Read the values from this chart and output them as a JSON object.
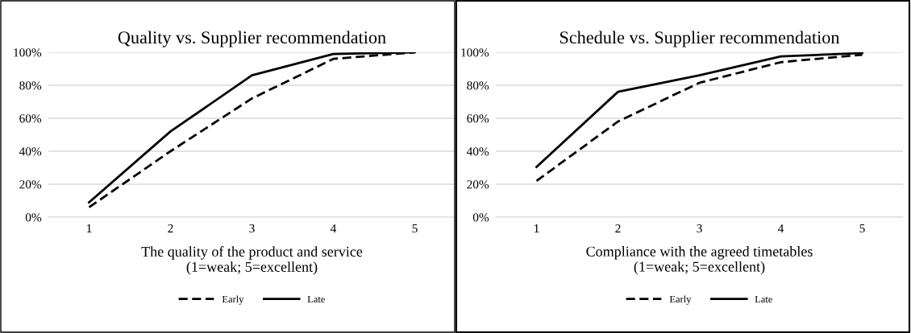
{
  "chart_data": [
    {
      "type": "line",
      "title": "Quality vs. Supplier recommendation",
      "xlabel": "The quality of the product and service\n(1=weak; 5=excellent)",
      "categories": [
        "1",
        "2",
        "3",
        "4",
        "5"
      ],
      "series": [
        {
          "name": "Early",
          "color": "#000000",
          "line_style": "dashed",
          "values": [
            6,
            40,
            72,
            96,
            100
          ]
        },
        {
          "name": "Late",
          "color": "#000000",
          "line_style": "solid",
          "values": [
            9,
            52,
            86,
            99,
            100
          ]
        }
      ],
      "ylim": [
        0,
        100
      ],
      "yticks": [
        {
          "value": 0,
          "label": "0%"
        },
        {
          "value": 20,
          "label": "20%"
        },
        {
          "value": 40,
          "label": "40%"
        },
        {
          "value": 60,
          "label": "60%"
        },
        {
          "value": 80,
          "label": "80%"
        },
        {
          "value": 100,
          "label": "100%"
        }
      ],
      "grid": "y",
      "legend": "bottom"
    },
    {
      "type": "line",
      "title": "Schedule vs. Supplier recommendation",
      "xlabel": "Compliance with the agreed timetables\n(1=weak; 5=excellent)",
      "categories": [
        "1",
        "2",
        "3",
        "4",
        "5"
      ],
      "series": [
        {
          "name": "Early",
          "color": "#000000",
          "line_style": "dashed",
          "values": [
            22,
            58,
            81.5,
            94,
            98.5
          ]
        },
        {
          "name": "Late",
          "color": "#000000",
          "line_style": "solid",
          "values": [
            30.5,
            76,
            86,
            97.5,
            99.5
          ]
        }
      ],
      "ylim": [
        0,
        100
      ],
      "yticks": [
        {
          "value": 0,
          "label": "0%"
        },
        {
          "value": 20,
          "label": "20%"
        },
        {
          "value": 40,
          "label": "40%"
        },
        {
          "value": 60,
          "label": "60%"
        },
        {
          "value": 80,
          "label": "80%"
        },
        {
          "value": 100,
          "label": "100%"
        }
      ],
      "grid": "y",
      "legend": "bottom"
    }
  ]
}
